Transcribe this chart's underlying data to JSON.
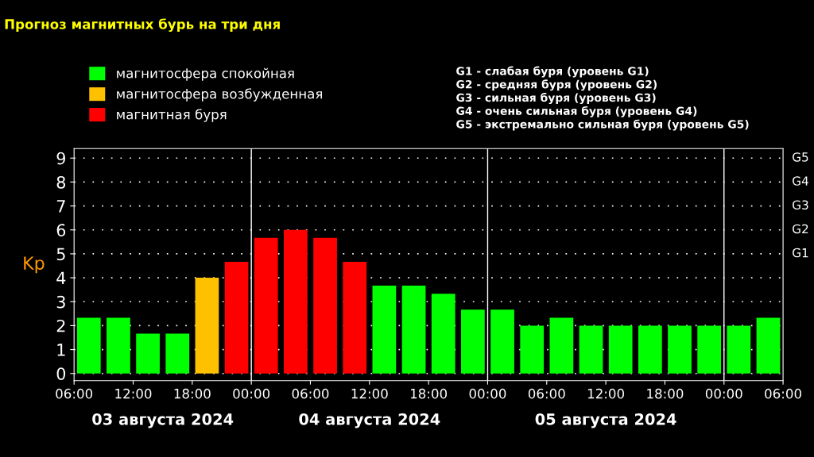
{
  "chart_data": {
    "type": "bar",
    "title": "Прогноз магнитных бурь на три дня",
    "ylabel": "Kp",
    "x": [
      "2024-08-03T07:30",
      "2024-08-03T10:30",
      "2024-08-03T13:30",
      "2024-08-03T16:30",
      "2024-08-03T19:30",
      "2024-08-03T22:30",
      "2024-08-04T01:30",
      "2024-08-04T04:30",
      "2024-08-04T07:30",
      "2024-08-04T10:30",
      "2024-08-04T13:30",
      "2024-08-04T16:30",
      "2024-08-04T19:30",
      "2024-08-04T22:30",
      "2024-08-05T01:30",
      "2024-08-05T04:30",
      "2024-08-05T07:30",
      "2024-08-05T10:30",
      "2024-08-05T13:30",
      "2024-08-05T16:30",
      "2024-08-05T19:30",
      "2024-08-05T22:30",
      "2024-08-06T01:30",
      "2024-08-06T04:30"
    ],
    "series": [
      {
        "name": "магнитосфера спокойная",
        "color": "#00ff00",
        "values": [
          2.33,
          2.33,
          1.67,
          1.67,
          null,
          null,
          null,
          null,
          null,
          null,
          3.67,
          3.67,
          3.33,
          2.67,
          2.67,
          2,
          2.33,
          2,
          2,
          2,
          2,
          2,
          2,
          2.33
        ]
      },
      {
        "name": "магнитосфера возбужденная",
        "color": "#ffc000",
        "values": [
          null,
          null,
          null,
          null,
          4,
          null,
          null,
          null,
          null,
          null,
          null,
          null,
          null,
          null,
          null,
          null,
          null,
          null,
          null,
          null,
          null,
          null,
          null,
          null
        ]
      },
      {
        "name": "магнитная буря",
        "color": "#ff0000",
        "values": [
          null,
          null,
          null,
          null,
          null,
          4.67,
          5.67,
          6,
          5.67,
          4.67,
          null,
          null,
          null,
          null,
          null,
          null,
          null,
          null,
          null,
          null,
          null,
          null,
          null,
          null
        ]
      }
    ],
    "xlim": [
      "2024-08-03T06:00",
      "2024-08-06T06:00"
    ],
    "xticks": [
      {
        "value": "2024-08-03T06:00",
        "label": "06:00"
      },
      {
        "value": "2024-08-03T12:00",
        "label": "12:00"
      },
      {
        "value": "2024-08-03T18:00",
        "label": "18:00"
      },
      {
        "value": "2024-08-04T00:00",
        "label": "00:00"
      },
      {
        "value": "2024-08-04T06:00",
        "label": "06:00"
      },
      {
        "value": "2024-08-04T12:00",
        "label": "12:00"
      },
      {
        "value": "2024-08-04T18:00",
        "label": "18:00"
      },
      {
        "value": "2024-08-05T00:00",
        "label": "00:00"
      },
      {
        "value": "2024-08-05T06:00",
        "label": "06:00"
      },
      {
        "value": "2024-08-05T12:00",
        "label": "12:00"
      },
      {
        "value": "2024-08-05T18:00",
        "label": "18:00"
      },
      {
        "value": "2024-08-06T00:00",
        "label": "00:00"
      },
      {
        "value": "2024-08-06T06:00",
        "label": "06:00"
      }
    ],
    "ylim": [
      -0.3,
      9.4
    ],
    "yticks": [
      0,
      1,
      2,
      3,
      4,
      5,
      6,
      7,
      8,
      9
    ],
    "ref_lines": [
      {
        "axis": "x",
        "value": "2024-08-04T00:00",
        "color": "#ffffff"
      },
      {
        "axis": "x",
        "value": "2024-08-05T00:00",
        "color": "#ffffff"
      },
      {
        "axis": "x",
        "value": "2024-08-06T00:00",
        "color": "#ffffff"
      }
    ],
    "grid": "y",
    "legend": "top left",
    "annotations": [
      "03 августа 2024",
      "04 августа 2024",
      "05 августа 2024",
      "G1 - слабая буря (уровень G1)\nG2 - средняя буря (уровень G2)\nG3 - сильная буря (уровень G3)\nG4 - очень сильная буря (уровень G4)\nG5 - экстремально сильная буря (уровень G5)",
      "G1",
      "G2",
      "G3",
      "G4",
      "G5"
    ]
  }
}
